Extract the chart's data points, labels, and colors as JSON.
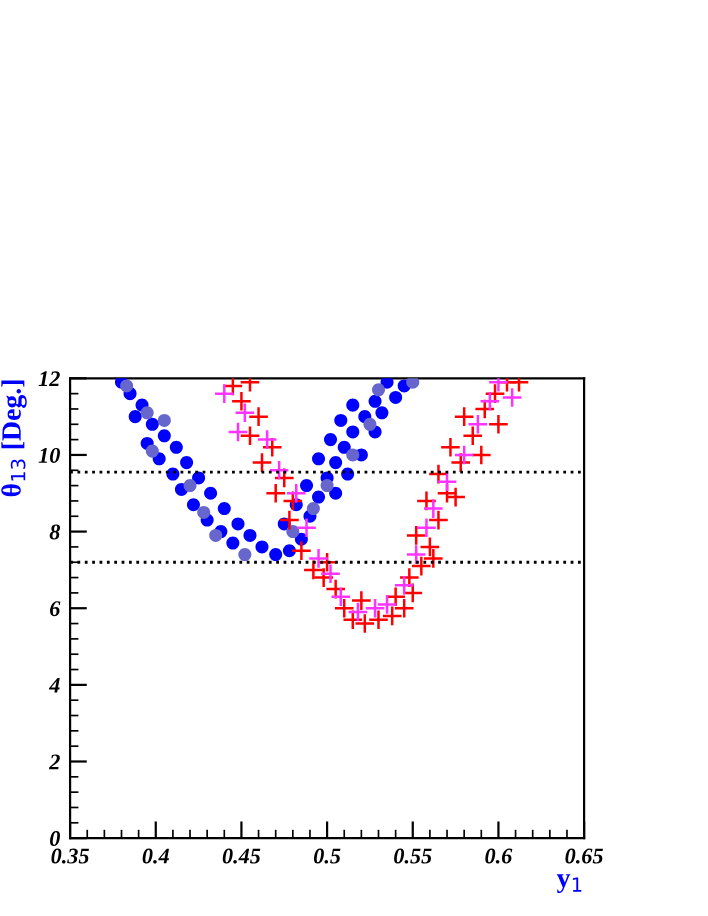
{
  "chart_data": {
    "type": "scatter",
    "xlabel": "y$_{1}$",
    "ylabel": "θ$_{13}$ [Deg.]",
    "xlim": [
      0.35,
      0.65
    ],
    "ylim": [
      0,
      12
    ],
    "xticks": [
      {
        "value": 0.35,
        "label": "0.35"
      },
      {
        "value": 0.4,
        "label": "0.4"
      },
      {
        "value": 0.45,
        "label": "0.45"
      },
      {
        "value": 0.5,
        "label": "0.5"
      },
      {
        "value": 0.55,
        "label": "0.55"
      },
      {
        "value": 0.6,
        "label": "0.6"
      },
      {
        "value": 0.65,
        "label": "0.65"
      }
    ],
    "yticks": [
      0,
      2,
      4,
      6,
      8,
      10,
      12
    ],
    "grid": false,
    "legend": false,
    "ref_lines": [
      {
        "axis": "y",
        "value": 9.55,
        "line_style": "dotted",
        "color": "#000000"
      },
      {
        "axis": "y",
        "value": 7.2,
        "line_style": "dotted",
        "color": "#000000"
      }
    ],
    "series": [
      {
        "color": "#0000ff",
        "marker": "circle",
        "x": [
          0.38,
          0.385,
          0.392,
          0.388,
          0.398,
          0.405,
          0.395,
          0.412,
          0.402,
          0.418,
          0.41,
          0.425,
          0.415,
          0.432,
          0.422,
          0.44,
          0.43,
          0.448,
          0.438,
          0.455,
          0.445,
          0.462,
          0.47,
          0.478,
          0.485,
          0.475,
          0.49,
          0.482,
          0.495,
          0.488,
          0.5,
          0.505,
          0.495,
          0.51,
          0.502,
          0.515,
          0.508,
          0.522,
          0.515,
          0.528,
          0.535,
          0.545,
          0.54,
          0.532,
          0.528,
          0.52,
          0.512,
          0.505
        ],
        "values": [
          11.9,
          11.6,
          11.3,
          11.0,
          10.8,
          10.5,
          10.3,
          10.2,
          9.9,
          9.8,
          9.5,
          9.4,
          9.1,
          9.0,
          8.7,
          8.6,
          8.3,
          8.2,
          8.0,
          7.9,
          7.7,
          7.6,
          7.4,
          7.5,
          7.8,
          8.2,
          8.4,
          8.7,
          8.9,
          9.2,
          9.4,
          9.8,
          9.9,
          10.2,
          10.4,
          10.6,
          10.9,
          11.0,
          11.3,
          11.4,
          11.9,
          11.8,
          11.5,
          11.1,
          10.6,
          10.0,
          9.5,
          9.0
        ]
      },
      {
        "color": "#6666cc",
        "marker": "circle",
        "x": [
          0.383,
          0.395,
          0.405,
          0.398,
          0.42,
          0.428,
          0.435,
          0.452,
          0.48,
          0.492,
          0.5,
          0.515,
          0.525,
          0.55,
          0.53
        ],
        "values": [
          11.8,
          11.1,
          10.9,
          10.1,
          9.2,
          8.5,
          7.9,
          7.4,
          8.0,
          8.6,
          9.2,
          10.0,
          10.8,
          11.9,
          11.7
        ]
      },
      {
        "color": "#ff0000",
        "marker": "cross",
        "x": [
          0.445,
          0.455,
          0.45,
          0.46,
          0.455,
          0.468,
          0.462,
          0.475,
          0.47,
          0.48,
          0.478,
          0.485,
          0.492,
          0.498,
          0.505,
          0.51,
          0.515,
          0.522,
          0.53,
          0.538,
          0.545,
          0.54,
          0.55,
          0.548,
          0.555,
          0.56,
          0.552,
          0.565,
          0.558,
          0.57,
          0.565,
          0.578,
          0.572,
          0.585,
          0.58,
          0.592,
          0.598,
          0.605,
          0.612,
          0.6,
          0.59,
          0.575,
          0.562,
          0.52,
          0.5
        ],
        "values": [
          11.8,
          11.9,
          11.4,
          11.0,
          10.5,
          10.2,
          9.8,
          9.4,
          9.0,
          8.8,
          8.3,
          7.5,
          7.0,
          6.8,
          6.5,
          6.0,
          5.7,
          5.6,
          5.7,
          5.8,
          6.0,
          6.3,
          6.4,
          6.8,
          7.1,
          7.6,
          7.9,
          8.3,
          8.8,
          9.0,
          9.5,
          9.8,
          10.2,
          10.5,
          11.0,
          11.2,
          11.6,
          11.9,
          11.9,
          10.8,
          10.0,
          8.9,
          7.3,
          6.2,
          7.2
        ]
      },
      {
        "color": "#ff33ff",
        "marker": "cross",
        "x": [
          0.44,
          0.452,
          0.448,
          0.465,
          0.472,
          0.482,
          0.488,
          0.495,
          0.502,
          0.508,
          0.518,
          0.528,
          0.535,
          0.545,
          0.552,
          0.558,
          0.562,
          0.57,
          0.58,
          0.588,
          0.595,
          0.6,
          0.608
        ],
        "values": [
          11.6,
          11.1,
          10.6,
          10.4,
          9.6,
          9.0,
          8.1,
          7.3,
          6.9,
          6.3,
          5.9,
          6.0,
          6.1,
          6.6,
          7.4,
          8.1,
          8.6,
          9.3,
          10.0,
          10.8,
          11.4,
          11.9,
          11.5
        ]
      }
    ]
  }
}
